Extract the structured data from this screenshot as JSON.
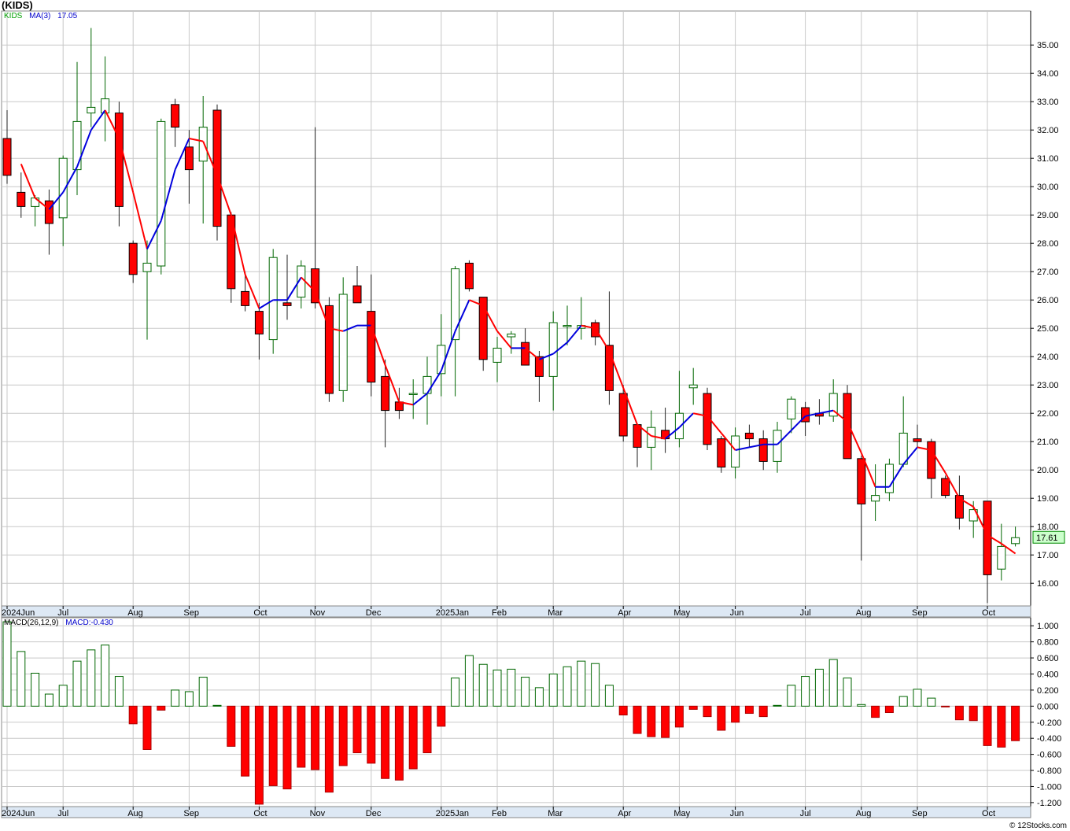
{
  "page": {
    "title": "(KIDS)",
    "footer": "© 12Stocks.com"
  },
  "legend": {
    "ticker": "KIDS",
    "ma_label": "MA(3)",
    "ma_value": "17.05",
    "macd_label": "MACD(26,12,9)",
    "macd_value": "MACD:-0.430"
  },
  "price_badge": "17.61",
  "colors": {
    "up": "#006600",
    "down": "#ff0000",
    "ma_up": "#0000dd",
    "ma_down": "#ff0000",
    "grid": "#c8c8c8",
    "axis_bar": "#dde8f4"
  },
  "chart_data": [
    {
      "type": "candlestick",
      "title": "",
      "ylim": [
        15.2,
        36.2
      ],
      "yticks": [
        "16.00",
        "17.00",
        "18.00",
        "19.00",
        "20.00",
        "21.00",
        "22.00",
        "23.00",
        "24.00",
        "25.00",
        "26.00",
        "27.00",
        "28.00",
        "29.00",
        "30.00",
        "31.00",
        "32.00",
        "33.00",
        "34.00",
        "35.00"
      ],
      "xlabels": [
        {
          "label": "2024Jun",
          "week": 0
        },
        {
          "label": "Jul",
          "week": 4
        },
        {
          "label": "Aug",
          "week": 9
        },
        {
          "label": "Sep",
          "week": 13
        },
        {
          "label": "Oct",
          "week": 18
        },
        {
          "label": "Nov",
          "week": 22
        },
        {
          "label": "Dec",
          "week": 26
        },
        {
          "label": "2025Jan",
          "week": 31
        },
        {
          "label": "Feb",
          "week": 35
        },
        {
          "label": "Mar",
          "week": 39
        },
        {
          "label": "Apr",
          "week": 44
        },
        {
          "label": "May",
          "week": 48
        },
        {
          "label": "Jun",
          "week": 52
        },
        {
          "label": "Jul",
          "week": 57
        },
        {
          "label": "Aug",
          "week": 61
        },
        {
          "label": "Sep",
          "week": 65
        },
        {
          "label": "Oct",
          "week": 70
        }
      ],
      "candles": [
        [
          31.7,
          32.7,
          30.1,
          30.4
        ],
        [
          29.8,
          30.5,
          28.9,
          29.3
        ],
        [
          29.3,
          29.7,
          28.6,
          29.6
        ],
        [
          29.5,
          29.9,
          27.6,
          28.7
        ],
        [
          28.9,
          31.1,
          27.9,
          31.0
        ],
        [
          30.6,
          34.4,
          29.7,
          32.3
        ],
        [
          32.6,
          35.6,
          32.1,
          32.8
        ],
        [
          32.6,
          34.6,
          31.6,
          33.1
        ],
        [
          32.6,
          33.0,
          28.6,
          29.3
        ],
        [
          28.0,
          28.1,
          26.6,
          26.9
        ],
        [
          27.0,
          28.1,
          24.6,
          27.3
        ],
        [
          27.2,
          32.4,
          26.9,
          32.3
        ],
        [
          32.9,
          33.1,
          31.4,
          32.1
        ],
        [
          31.4,
          32.0,
          29.4,
          30.6
        ],
        [
          30.9,
          33.2,
          28.7,
          32.1
        ],
        [
          32.7,
          32.9,
          28.1,
          28.6
        ],
        [
          29.0,
          29.1,
          25.9,
          26.4
        ],
        [
          26.3,
          27.0,
          25.6,
          25.8
        ],
        [
          25.6,
          25.9,
          23.9,
          24.8
        ],
        [
          24.6,
          27.8,
          24.1,
          27.5
        ],
        [
          25.9,
          27.6,
          25.3,
          25.8
        ],
        [
          26.1,
          27.4,
          25.7,
          27.2
        ],
        [
          27.1,
          32.1,
          25.7,
          25.9
        ],
        [
          25.8,
          26.1,
          22.4,
          22.7
        ],
        [
          22.8,
          26.8,
          22.4,
          26.2
        ],
        [
          26.5,
          27.2,
          26.0,
          25.9
        ],
        [
          25.6,
          26.9,
          22.6,
          23.1
        ],
        [
          23.3,
          23.9,
          20.8,
          22.1
        ],
        [
          22.4,
          22.9,
          21.8,
          22.1
        ],
        [
          22.7,
          23.2,
          21.8,
          22.7
        ],
        [
          22.7,
          24.0,
          21.6,
          23.3
        ],
        [
          23.4,
          25.5,
          22.6,
          24.4
        ],
        [
          24.6,
          27.2,
          22.6,
          27.1
        ],
        [
          27.3,
          27.4,
          26.3,
          26.4
        ],
        [
          26.1,
          26.1,
          23.5,
          23.9
        ],
        [
          23.8,
          24.7,
          23.1,
          24.3
        ],
        [
          24.7,
          24.9,
          24.1,
          24.8
        ],
        [
          24.5,
          25.0,
          23.8,
          23.7
        ],
        [
          24.0,
          24.2,
          22.4,
          23.3
        ],
        [
          23.3,
          25.6,
          22.1,
          25.2
        ],
        [
          25.1,
          25.8,
          24.4,
          25.1
        ],
        [
          25.0,
          26.1,
          24.6,
          25.1
        ],
        [
          25.2,
          25.3,
          24.4,
          24.7
        ],
        [
          24.4,
          26.3,
          22.3,
          22.8
        ],
        [
          22.7,
          23.0,
          21.0,
          21.2
        ],
        [
          21.6,
          21.6,
          20.1,
          20.8
        ],
        [
          20.8,
          22.1,
          20.0,
          21.5
        ],
        [
          21.4,
          22.2,
          20.6,
          21.1
        ],
        [
          21.1,
          23.5,
          20.8,
          22.0
        ],
        [
          22.9,
          23.6,
          22.3,
          23.0
        ],
        [
          22.7,
          22.9,
          20.7,
          20.9
        ],
        [
          21.1,
          21.2,
          19.9,
          20.1
        ],
        [
          20.1,
          21.5,
          19.7,
          21.2
        ],
        [
          21.3,
          21.6,
          20.8,
          21.1
        ],
        [
          21.1,
          21.4,
          20.0,
          20.3
        ],
        [
          20.3,
          21.7,
          19.9,
          21.4
        ],
        [
          21.8,
          22.6,
          21.3,
          22.5
        ],
        [
          22.2,
          22.4,
          21.2,
          21.7
        ],
        [
          22.0,
          22.5,
          21.6,
          21.9
        ],
        [
          21.9,
          23.2,
          21.7,
          22.7
        ],
        [
          22.7,
          23.0,
          20.6,
          20.4
        ],
        [
          20.4,
          20.5,
          16.8,
          18.8
        ],
        [
          18.9,
          20.2,
          18.2,
          19.1
        ],
        [
          19.2,
          20.4,
          18.9,
          20.2
        ],
        [
          20.2,
          22.6,
          20.1,
          21.3
        ],
        [
          21.1,
          21.6,
          20.8,
          21.0
        ],
        [
          21.0,
          21.1,
          19.0,
          19.7
        ],
        [
          19.7,
          19.8,
          19.0,
          19.1
        ],
        [
          19.1,
          19.8,
          17.9,
          18.3
        ],
        [
          18.2,
          18.9,
          17.6,
          18.6
        ],
        [
          18.9,
          18.9,
          15.3,
          16.3
        ],
        [
          16.5,
          18.1,
          16.1,
          17.3
        ],
        [
          17.4,
          18.0,
          17.3,
          17.61
        ]
      ],
      "ma3": [
        null,
        30.8,
        29.6,
        29.2,
        29.8,
        30.7,
        32.0,
        32.7,
        31.7,
        29.8,
        27.8,
        28.8,
        30.6,
        31.7,
        31.6,
        30.4,
        29.0,
        26.9,
        25.7,
        26.0,
        26.0,
        26.8,
        26.3,
        25.0,
        24.9,
        25.1,
        25.1,
        23.7,
        22.4,
        22.3,
        22.7,
        23.5,
        24.9,
        26.0,
        25.8,
        24.9,
        24.3,
        24.3,
        23.9,
        24.1,
        24.5,
        25.1,
        25.0,
        24.2,
        22.9,
        21.6,
        21.2,
        21.1,
        21.5,
        22.0,
        21.9,
        21.3,
        20.7,
        20.8,
        20.9,
        20.9,
        21.4,
        21.9,
        22.0,
        22.1,
        21.7,
        20.6,
        19.4,
        19.4,
        20.2,
        20.8,
        20.7,
        19.9,
        19.0,
        18.7,
        17.7,
        17.4,
        17.05
      ],
      "series": [
        {
          "name": "MA(3)",
          "ref": "ma3"
        }
      ]
    },
    {
      "type": "bar",
      "title": "",
      "ylim": [
        -1.25,
        1.1
      ],
      "yticks": [
        "1.000",
        "0.800",
        "0.600",
        "0.400",
        "0.200",
        "0.000",
        "-0.200",
        "-0.400",
        "-0.600",
        "-0.800",
        "-1.000",
        "-1.200"
      ],
      "series": [
        {
          "name": "MACD(26,12,9)",
          "ref": "macd"
        }
      ],
      "macd": [
        1.05,
        0.68,
        0.41,
        0.15,
        0.26,
        0.56,
        0.7,
        0.76,
        0.37,
        -0.22,
        -0.54,
        -0.05,
        0.2,
        0.18,
        0.36,
        0.01,
        -0.5,
        -0.87,
        -1.22,
        -0.99,
        -1.03,
        -0.76,
        -0.79,
        -1.07,
        -0.74,
        -0.58,
        -0.71,
        -0.9,
        -0.92,
        -0.78,
        -0.58,
        -0.25,
        0.35,
        0.63,
        0.52,
        0.45,
        0.46,
        0.36,
        0.23,
        0.4,
        0.49,
        0.56,
        0.53,
        0.26,
        -0.11,
        -0.34,
        -0.38,
        -0.39,
        -0.26,
        -0.04,
        -0.13,
        -0.3,
        -0.2,
        -0.09,
        -0.13,
        0.01,
        0.26,
        0.37,
        0.46,
        0.58,
        0.35,
        0.02,
        -0.14,
        -0.08,
        0.12,
        0.21,
        0.1,
        -0.01,
        -0.17,
        -0.18,
        -0.49,
        -0.51,
        -0.43
      ]
    }
  ]
}
